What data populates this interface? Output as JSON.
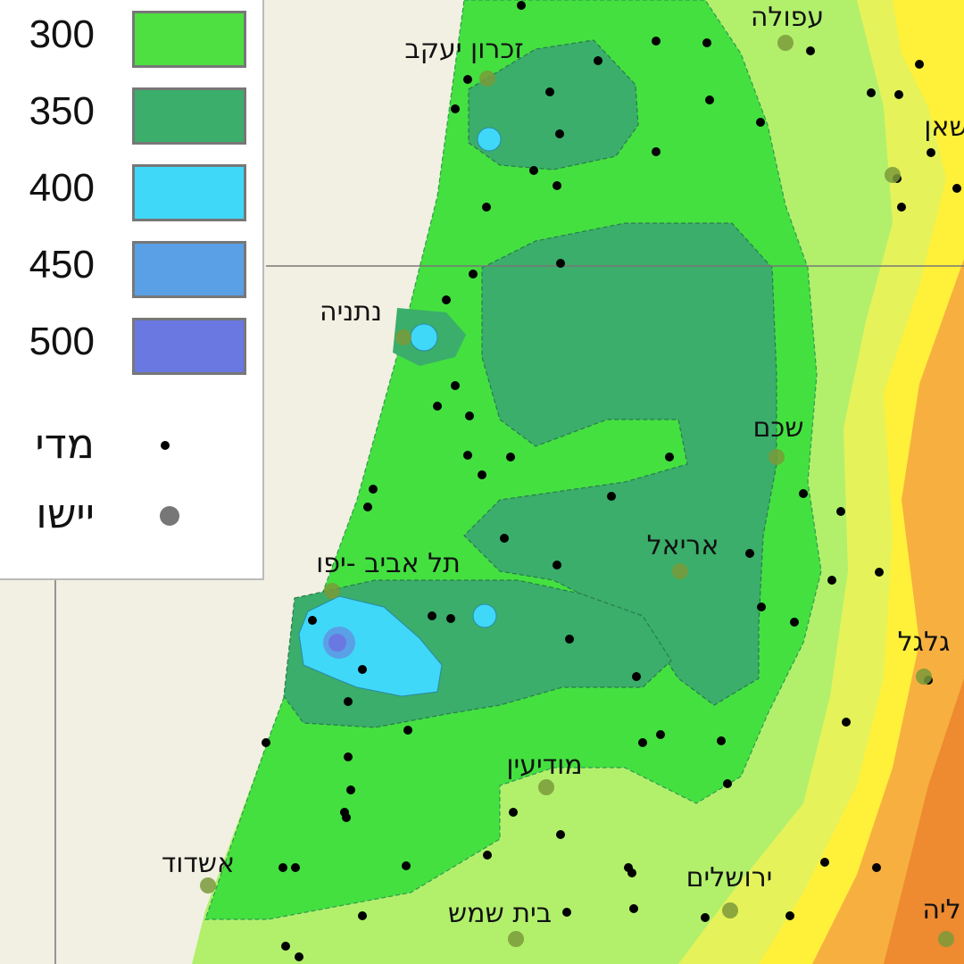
{
  "legend": {
    "classes": [
      {
        "label": "300",
        "color": "#4de040"
      },
      {
        "label": "350",
        "color": "#3aae6a"
      },
      {
        "label": "400",
        "color": "#40d8f8"
      },
      {
        "label": "450",
        "color": "#5aa0e6"
      },
      {
        "label": "500",
        "color": "#6a78e2"
      }
    ],
    "symbols": [
      {
        "label": "מדי",
        "marker": "black-dot"
      },
      {
        "label": "יישו",
        "marker": "gray-dot"
      }
    ]
  },
  "cities": [
    {
      "name": "עפולה"
    },
    {
      "name": "זכרון יעקב"
    },
    {
      "name": "שאן"
    },
    {
      "name": "נתניה"
    },
    {
      "name": "שכם"
    },
    {
      "name": "אריאל"
    },
    {
      "name": "תל אביב -יפו"
    },
    {
      "name": "גלגל"
    },
    {
      "name": "מודיעין"
    },
    {
      "name": "אשדוד"
    },
    {
      "name": "ירושלים"
    },
    {
      "name": "בית שמש"
    },
    {
      "name": "ליה"
    }
  ],
  "colors": {
    "sea": "#f2f0e2",
    "zone_250": "#b2f06c",
    "zone_200": "#e6f25a",
    "zone_150": "#fff03a",
    "zone_100": "#f7b040",
    "zone_50": "#ee8a30"
  }
}
